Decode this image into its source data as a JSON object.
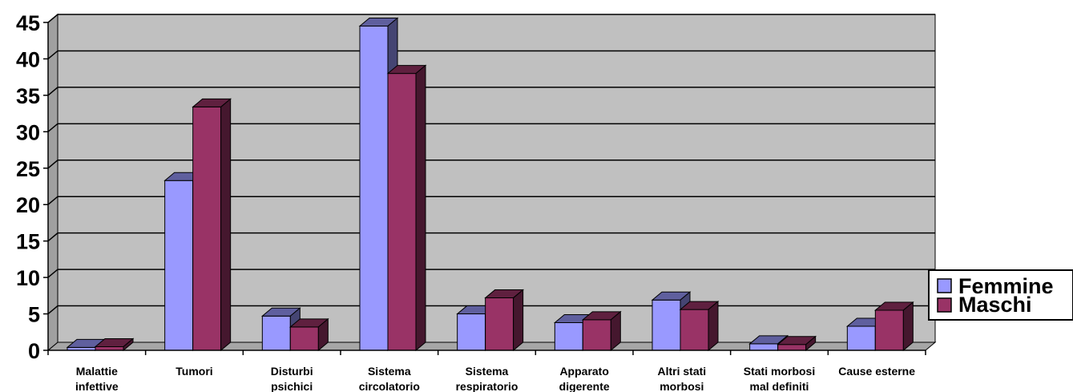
{
  "chart_data": {
    "type": "bar",
    "categories": [
      [
        "Malattie",
        "infettive"
      ],
      [
        "Tumori"
      ],
      [
        "Disturbi",
        "psichici"
      ],
      [
        "Sistema",
        "circolatorio"
      ],
      [
        "Sistema",
        "respiratorio"
      ],
      [
        "Apparato",
        "digerente"
      ],
      [
        "Altri stati",
        "morbosi"
      ],
      [
        "Stati morbosi",
        "mal definiti"
      ],
      [
        "Cause esterne"
      ]
    ],
    "series": [
      {
        "name": "Femmine",
        "color": "#9999ff",
        "values": [
          0.4,
          23.3,
          4.7,
          44.5,
          5.0,
          3.8,
          6.9,
          0.9,
          3.3
        ]
      },
      {
        "name": "Maschi",
        "color": "#993366",
        "values": [
          0.5,
          33.4,
          3.2,
          38.0,
          7.2,
          4.2,
          5.6,
          0.8,
          5.5
        ]
      }
    ],
    "yticks": [
      "0",
      "5",
      "10",
      "15",
      "20",
      "25",
      "30",
      "35",
      "40",
      "45"
    ],
    "ylim": [
      0,
      45
    ],
    "grid": true,
    "legend": "right",
    "plot_background": "#c0c0c0"
  }
}
